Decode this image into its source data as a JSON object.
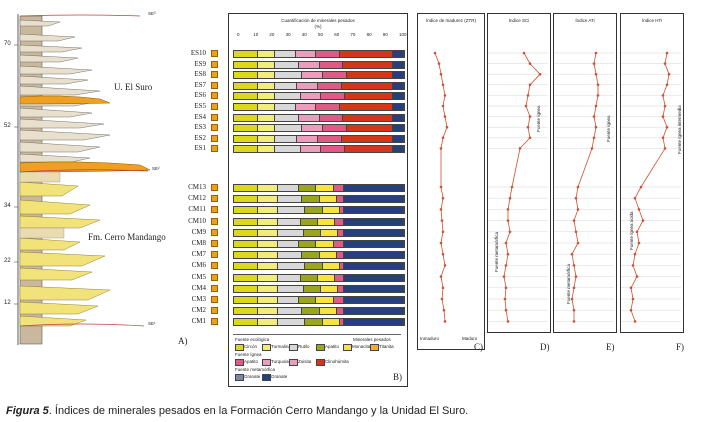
{
  "panelA": {
    "heights": [
      "70",
      "52",
      "34",
      "22",
      "12"
    ],
    "units": [
      "U. El Suro",
      "Fm. Cerro Mandango"
    ],
    "se_labels": [
      "SE³",
      "SE²",
      "SE¹"
    ],
    "letter": "A)"
  },
  "panelB": {
    "title": "Cuantificación de minerales pesados",
    "unit": "(%)",
    "ticks": [
      "0",
      "10",
      "20",
      "30",
      "40",
      "50",
      "60",
      "70",
      "80",
      "90",
      "100"
    ],
    "samples_top": [
      "ES10",
      "ES9",
      "ES8",
      "ES7",
      "ES6",
      "ES5",
      "ES4",
      "ES3",
      "ES2",
      "ES1"
    ],
    "samples_bottom": [
      "CM13",
      "CM12",
      "CM11",
      "CM10",
      "CM9",
      "CM8",
      "CM7",
      "CM6",
      "CM5",
      "CM4",
      "CM3",
      "CM2",
      "CM1"
    ],
    "legend": {
      "fuente_ecologica": "Fuente ecológica",
      "minerales_pesados": "Minerales pesados",
      "fuente_ignea": "Fuente ígnea",
      "fuente_metamorfica": "Fuente metamórfica",
      "items_row1": [
        "Circón",
        "Turmalina",
        "Rutilo",
        "Apatito",
        "Monacita",
        "Titanita"
      ],
      "items_row2": [
        "Apatito",
        "Turquoise",
        "Zoisita",
        "Clinohúmita"
      ],
      "items_row3": [
        "Granate",
        "Granate"
      ]
    },
    "letter": "B)"
  },
  "panelC": {
    "title": "Índice de madurez (ZTR)",
    "bottom_left": "Inmaduro",
    "bottom_right": "Maduro",
    "letter": "C)"
  },
  "panelD": {
    "title": "Índice SCi",
    "fuente_ignea": "Fuente ígnea",
    "fuente_metamorfica": "Fuente metamórfica",
    "letter": "D)"
  },
  "panelE": {
    "title": "Índice ATi",
    "fuente_ignea": "Fuente ígnea",
    "fuente_metamorfica": "Fuente metamórfica",
    "letter": "E)"
  },
  "panelF": {
    "title": "Índice HTi",
    "fuente_ignea_intermedia": "Fuente ígnea intermedia",
    "fuente_ignea_acida": "Fuente ígnea ácida",
    "letter": "F)"
  },
  "caption": {
    "label": "Figura 5",
    "text": ". Índices de minerales pesados en la Formación Cerro Mandango y la Unidad El Suro."
  },
  "colors": {
    "zircon": "#dcd81c",
    "tourmaline": "#f2ec7a",
    "rutile": "#d8d8d8",
    "apatite": "#9aa61c",
    "monazite": "#f6e43c",
    "titanite": "#f2b020",
    "pink": "#e05a86",
    "lightpink": "#ec9cbc",
    "red": "#d4361c",
    "blue": "#26407e",
    "curve": "#d05030"
  }
}
